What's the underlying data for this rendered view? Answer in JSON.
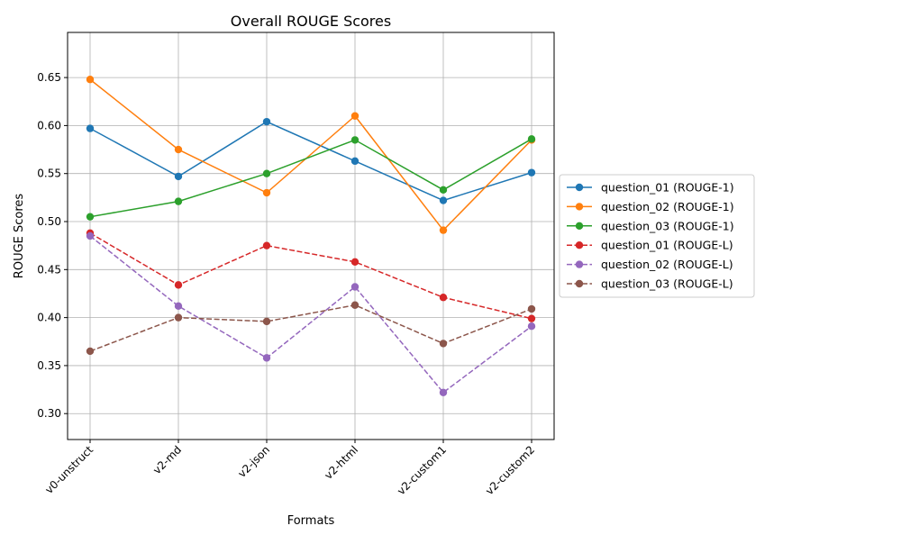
{
  "chart_data": {
    "type": "line",
    "title": "Overall ROUGE Scores",
    "xlabel": "Formats",
    "ylabel": "ROUGE Scores",
    "categories": [
      "v0-unstruct",
      "v2-md",
      "v2-json",
      "v2-html",
      "v2-custom1",
      "v2-custom2"
    ],
    "ylim": [
      0.273,
      0.697
    ],
    "yticks": [
      "0.30",
      "0.35",
      "0.40",
      "0.45",
      "0.50",
      "0.55",
      "0.60",
      "0.65"
    ],
    "grid": true,
    "legend_position": "outside-right",
    "series": [
      {
        "name": "question_01 (ROUGE-1)",
        "color": "#1f77b4",
        "style": "solid",
        "values": [
          0.597,
          0.547,
          0.604,
          0.563,
          0.522,
          0.551
        ]
      },
      {
        "name": "question_02 (ROUGE-1)",
        "color": "#ff7f0e",
        "style": "solid",
        "values": [
          0.648,
          0.575,
          0.53,
          0.61,
          0.491,
          0.585
        ]
      },
      {
        "name": "question_03 (ROUGE-1)",
        "color": "#2ca02c",
        "style": "solid",
        "values": [
          0.505,
          0.521,
          0.55,
          0.585,
          0.533,
          0.586
        ]
      },
      {
        "name": "question_01 (ROUGE-L)",
        "color": "#d62728",
        "style": "dashed",
        "values": [
          0.488,
          0.434,
          0.475,
          0.458,
          0.421,
          0.399
        ]
      },
      {
        "name": "question_02 (ROUGE-L)",
        "color": "#9467bd",
        "style": "dashed",
        "values": [
          0.485,
          0.412,
          0.358,
          0.432,
          0.322,
          0.391
        ]
      },
      {
        "name": "question_03 (ROUGE-L)",
        "color": "#8c564b",
        "style": "dashed",
        "values": [
          0.365,
          0.4,
          0.396,
          0.413,
          0.373,
          0.409
        ]
      }
    ]
  }
}
